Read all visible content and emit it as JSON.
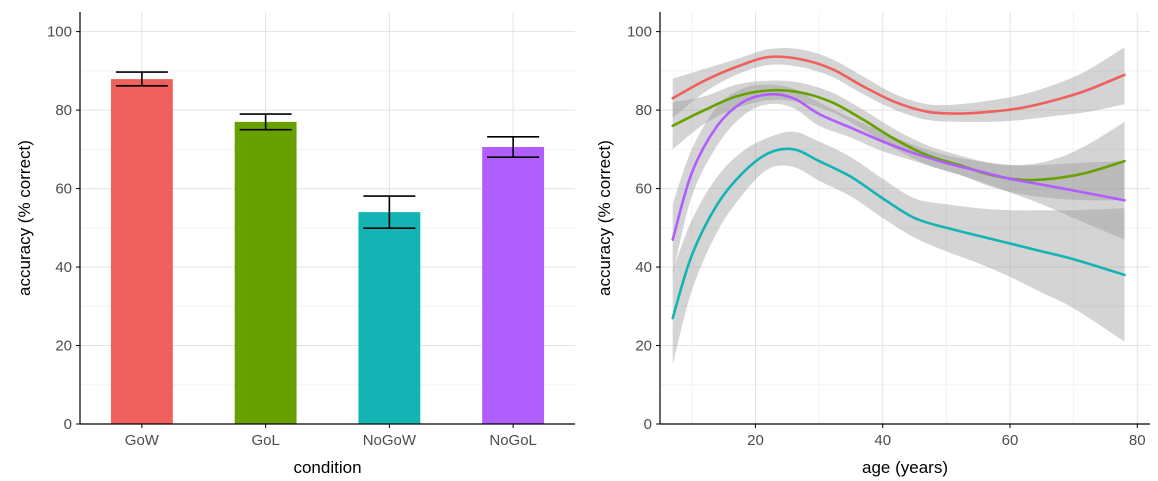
{
  "chart_data": [
    {
      "type": "bar",
      "xlabel": "condition",
      "ylabel": "accuracy (% correct)",
      "ylim": [
        0,
        105
      ],
      "yticks": [
        0,
        20,
        40,
        60,
        80,
        100
      ],
      "grid": true,
      "categories": [
        "GoW",
        "GoL",
        "NoGoW",
        "NoGoL"
      ],
      "values": [
        87.9,
        77.0,
        54.0,
        70.6
      ],
      "error_bars": [
        {
          "low": 86.2,
          "high": 89.7
        },
        {
          "low": 75.0,
          "high": 79.0
        },
        {
          "low": 49.9,
          "high": 58.1
        },
        {
          "low": 68.0,
          "high": 73.2
        }
      ],
      "colors": [
        "#F0605D",
        "#66A100",
        "#14B4B4",
        "#B15EFF"
      ]
    },
    {
      "type": "line",
      "xlabel": "age (years)",
      "ylabel": "accuracy (% correct)",
      "xlim": [
        5,
        82
      ],
      "ylim": [
        0,
        105
      ],
      "xticks": [
        20,
        40,
        60,
        80
      ],
      "yticks": [
        0,
        20,
        40,
        60,
        80,
        100
      ],
      "grid": true,
      "series": [
        {
          "color": "#F0605D",
          "x": [
            7,
            12,
            17,
            22,
            27,
            32,
            37,
            42,
            47,
            52,
            57,
            62,
            67,
            72,
            78
          ],
          "y": [
            83,
            87.5,
            91,
            93.5,
            93,
            90.5,
            86,
            82,
            79.6,
            79.1,
            79.6,
            80.6,
            82.5,
            85,
            89
          ],
          "ci_low": [
            78,
            84.5,
            89,
            91.5,
            91,
            88.5,
            84,
            80,
            77.5,
            77,
            77,
            77.5,
            78.5,
            79.5,
            81.5
          ],
          "ci_high": [
            88,
            90.5,
            93,
            95.5,
            95.5,
            93,
            88.5,
            84,
            81.5,
            81.5,
            82.5,
            84,
            86.5,
            90,
            96
          ]
        },
        {
          "color": "#66A100",
          "x": [
            7,
            12,
            17,
            22,
            27,
            32,
            37,
            42,
            47,
            52,
            57,
            62,
            67,
            72,
            78
          ],
          "y": [
            76,
            80,
            83.5,
            85,
            84.5,
            82,
            77.5,
            72.5,
            68.5,
            66,
            63.5,
            62.2,
            62.6,
            64,
            67
          ],
          "ci_low": [
            70,
            76.5,
            80.5,
            82.5,
            82,
            79.5,
            75,
            70,
            66,
            63.5,
            60.5,
            58.5,
            57.5,
            57,
            57
          ],
          "ci_high": [
            82,
            83.5,
            86.5,
            87.5,
            87,
            84.5,
            80,
            75,
            71,
            68.5,
            66.5,
            66,
            67.5,
            71,
            77
          ]
        },
        {
          "color": "#B15EFF",
          "x": [
            7,
            10,
            14,
            18,
            22,
            26,
            30,
            35,
            40,
            45,
            50,
            55,
            60,
            65,
            70,
            78
          ],
          "y": [
            47,
            64,
            76,
            82,
            84,
            83,
            79,
            75.5,
            72,
            69,
            66.5,
            64.5,
            62.5,
            61,
            59.5,
            57
          ],
          "ci_low": [
            38,
            58,
            71,
            78.5,
            81.5,
            80.5,
            76,
            73,
            69.5,
            67,
            64.5,
            62,
            59,
            56,
            52.5,
            47
          ],
          "ci_high": [
            56,
            70,
            81,
            85.5,
            86.5,
            85.5,
            82,
            78,
            74.5,
            71,
            68.5,
            67,
            66,
            66,
            66.5,
            67
          ]
        },
        {
          "color": "#14B4B4",
          "x": [
            7,
            10,
            14,
            18,
            22,
            26,
            30,
            35,
            40,
            45,
            50,
            55,
            60,
            65,
            70,
            78
          ],
          "y": [
            27,
            43,
            56,
            64,
            69,
            70,
            67,
            63,
            57.5,
            52.5,
            50,
            48,
            46,
            44,
            42,
            38
          ],
          "ci_low": [
            15,
            34,
            49,
            58.5,
            65,
            65.5,
            62,
            58,
            52.5,
            47.5,
            44,
            41,
            37.5,
            33.5,
            29.5,
            21
          ],
          "ci_high": [
            39,
            52,
            63,
            69.5,
            73,
            74.5,
            72,
            68,
            62.5,
            57.5,
            56,
            55,
            54.5,
            54.5,
            54.5,
            55
          ]
        }
      ]
    }
  ]
}
